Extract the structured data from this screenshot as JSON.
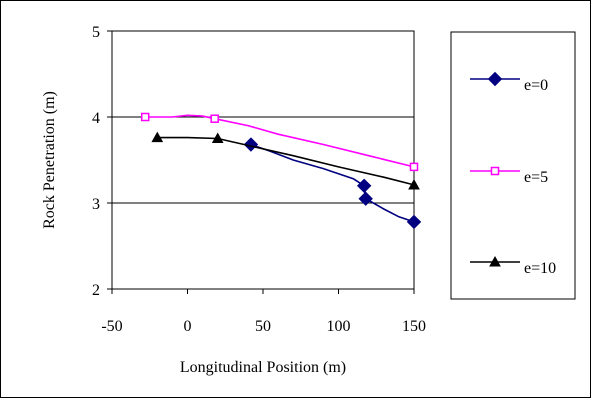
{
  "chart_data": {
    "type": "line",
    "xlabel": "Longitudinal Position (m)",
    "ylabel": "Rock Penetration (m)",
    "xlim": [
      -50,
      150
    ],
    "ylim": [
      2,
      5
    ],
    "x_ticks": [
      "-50",
      "0",
      "50",
      "100",
      "150"
    ],
    "y_ticks": [
      "2",
      "3",
      "4",
      "5"
    ],
    "grid": "horizontal major gridlines",
    "legend_position": "right",
    "series": [
      {
        "name": "e=0",
        "color": "#000080",
        "marker": "diamond",
        "x": [
          42,
          55,
          70,
          90,
          110,
          117,
          118,
          130,
          140,
          150
        ],
        "y": [
          3.68,
          3.6,
          3.5,
          3.4,
          3.28,
          3.2,
          3.05,
          2.93,
          2.84,
          2.78
        ],
        "marker_points": [
          [
            42,
            3.68
          ],
          [
            117,
            3.2
          ],
          [
            118,
            3.05
          ],
          [
            150,
            2.78
          ]
        ]
      },
      {
        "name": "e=5",
        "color": "#ff00ff",
        "marker": "square",
        "x": [
          -28,
          -10,
          0,
          10,
          18,
          40,
          60,
          90,
          120,
          150
        ],
        "y": [
          4.0,
          4.0,
          4.02,
          4.01,
          3.98,
          3.9,
          3.8,
          3.68,
          3.55,
          3.42
        ],
        "marker_points": [
          [
            -28,
            4.0
          ],
          [
            18,
            3.98
          ],
          [
            150,
            3.42
          ]
        ]
      },
      {
        "name": "e=10",
        "color": "#000000",
        "marker": "triangle",
        "x": [
          -20,
          0,
          20,
          40,
          70,
          100,
          130,
          150
        ],
        "y": [
          3.76,
          3.76,
          3.75,
          3.67,
          3.55,
          3.42,
          3.3,
          3.21
        ],
        "marker_points": [
          [
            -20,
            3.76
          ],
          [
            20,
            3.75
          ],
          [
            150,
            3.21
          ]
        ]
      }
    ]
  }
}
